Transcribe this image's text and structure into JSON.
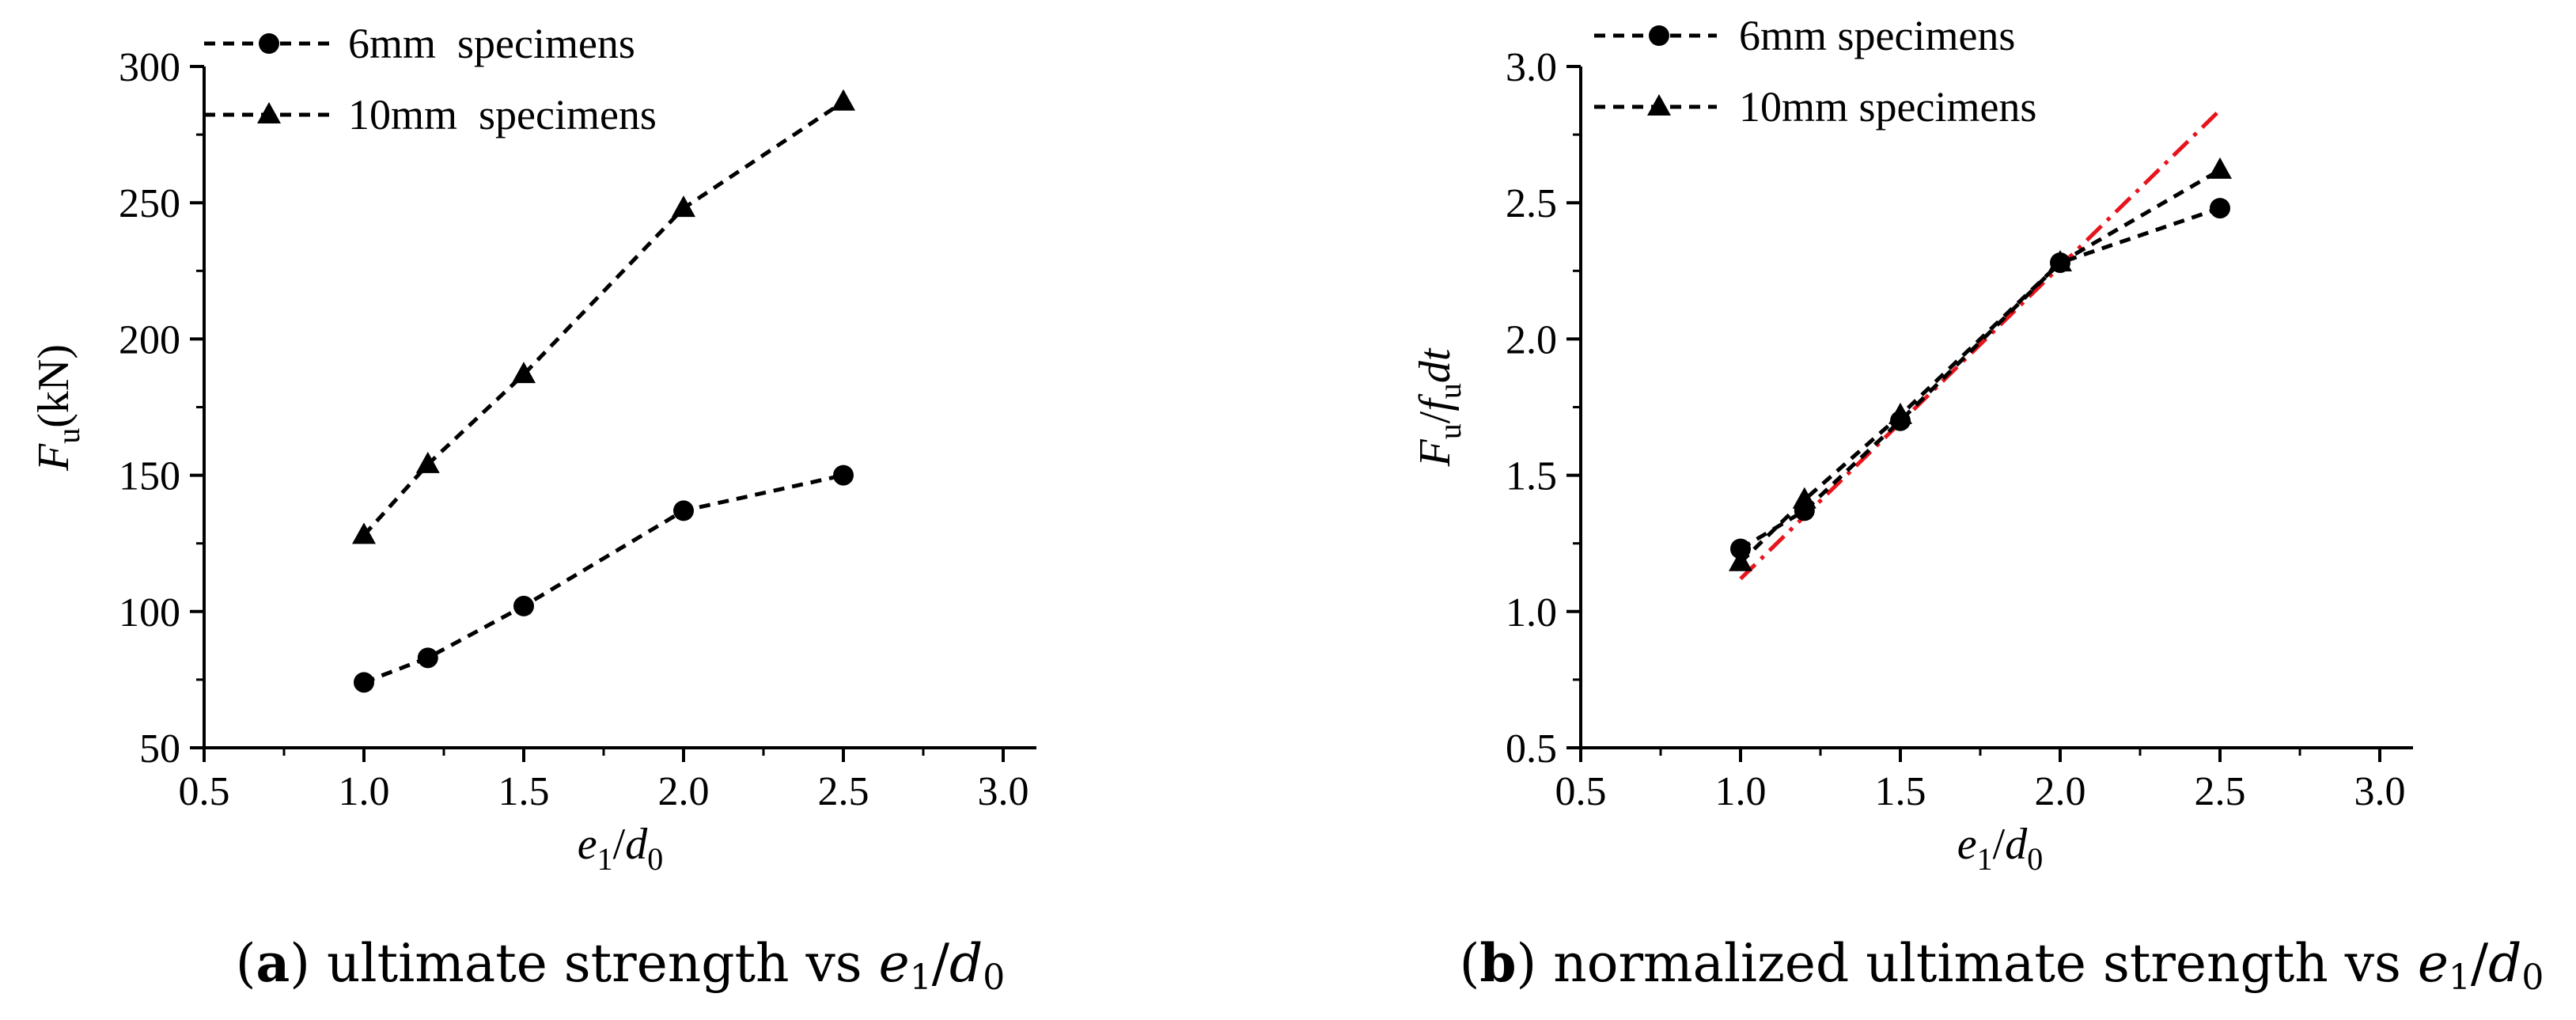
{
  "chart_data": [
    {
      "id": "a",
      "type": "line",
      "x_ticks": [
        "0.5",
        "1.0",
        "1.5",
        "2.0",
        "2.5",
        "3.0"
      ],
      "y_ticks": [
        "50",
        "100",
        "150",
        "200",
        "250",
        "300"
      ],
      "xlim": [
        0.5,
        3.0
      ],
      "ylim": [
        50,
        300
      ],
      "xlabel": {
        "main": "e",
        "sub": "1",
        "sep": "/",
        "main2": "d",
        "sub2": "0"
      },
      "ylabel": {
        "main": "F",
        "sub": "u",
        "rest": "(kN)"
      },
      "series": [
        {
          "name": "6mm  specimens",
          "marker": "circle",
          "style": "dashed",
          "x": [
            1.0,
            1.2,
            1.5,
            2.0,
            2.5
          ],
          "y": [
            74,
            83,
            102,
            137,
            150
          ]
        },
        {
          "name": "10mm  specimens",
          "marker": "triangle",
          "style": "dashed",
          "x": [
            1.0,
            1.2,
            1.5,
            2.0,
            2.5
          ],
          "y": [
            128,
            154,
            187,
            248,
            287
          ]
        }
      ],
      "legend_position": "top-left",
      "caption": {
        "label": "a",
        "text": " ultimate strength vs ",
        "var1": "e",
        "sub1": "1",
        "sep": "/",
        "var2": "d",
        "sub2": "0"
      }
    },
    {
      "id": "b",
      "type": "line",
      "x_ticks": [
        "0.5",
        "1.0",
        "1.5",
        "2.0",
        "2.5",
        "3.0"
      ],
      "y_ticks": [
        "0.5",
        "1.0",
        "1.5",
        "2.0",
        "2.5",
        "3.0"
      ],
      "xlim": [
        0.5,
        3.0
      ],
      "ylim": [
        0.5,
        3.0
      ],
      "xlabel": {
        "main": "e",
        "sub": "1",
        "sep": "/",
        "main2": "d",
        "sub2": "0"
      },
      "ylabel": {
        "main": "F",
        "sub": "u",
        "sep": "/",
        "main2": "f",
        "sub2": "u",
        "tail": "dt"
      },
      "series": [
        {
          "name": "6mm specimens",
          "marker": "circle",
          "style": "dashed",
          "x": [
            1.0,
            1.2,
            1.5,
            2.0,
            2.5
          ],
          "y": [
            1.23,
            1.37,
            1.7,
            2.28,
            2.48
          ]
        },
        {
          "name": "10mm specimens",
          "marker": "triangle",
          "style": "dashed",
          "x": [
            1.0,
            1.2,
            1.5,
            2.0,
            2.5
          ],
          "y": [
            1.18,
            1.41,
            1.72,
            2.28,
            2.62
          ]
        }
      ],
      "fit_line": {
        "style": "dash-dot",
        "color": "#e8141c",
        "x": [
          1.0,
          2.5
        ],
        "y": [
          1.12,
          2.84
        ]
      },
      "legend_position": "top-left",
      "caption": {
        "label": "b",
        "text": " normalized ultimate strength vs ",
        "var1": "e",
        "sub1": "1",
        "sep": "/",
        "var2": "d",
        "sub2": "0"
      }
    }
  ]
}
